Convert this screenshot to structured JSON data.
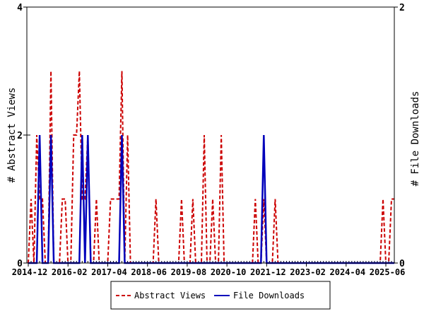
{
  "chart_data": {
    "type": "line",
    "title": "",
    "xlabel": "",
    "ylabel": "# Abstract Views",
    "y2label": "# File Downloads",
    "x_range": [
      "2014-12",
      "2025-09"
    ],
    "x_tick_labels": [
      "2014-12",
      "2016-02",
      "2017-04",
      "2018-06",
      "2019-08",
      "2020-10",
      "2021-12",
      "2023-02",
      "2024-04",
      "2025-06"
    ],
    "ylim": [
      0,
      4
    ],
    "y_ticks": [
      "0",
      "2",
      "4"
    ],
    "y2lim": [
      0,
      2
    ],
    "y2_ticks": [
      "0",
      "2"
    ],
    "grid": false,
    "legend_placement": "bottom",
    "note_on_points": "monthly series; months not listed are 0",
    "series": [
      {
        "name": "Abstract Views",
        "axis": "left",
        "color": "#cc0000",
        "style": "dashed",
        "points": [
          [
            "2015-01",
            1
          ],
          [
            "2015-03",
            2
          ],
          [
            "2015-04",
            1
          ],
          [
            "2015-05",
            1
          ],
          [
            "2015-08",
            3
          ],
          [
            "2015-12",
            1
          ],
          [
            "2016-01",
            1
          ],
          [
            "2016-04",
            2
          ],
          [
            "2016-05",
            2
          ],
          [
            "2016-06",
            3
          ],
          [
            "2016-07",
            1
          ],
          [
            "2016-08",
            1
          ],
          [
            "2016-09",
            2
          ],
          [
            "2016-12",
            1
          ],
          [
            "2017-05",
            1
          ],
          [
            "2017-06",
            1
          ],
          [
            "2017-07",
            1
          ],
          [
            "2017-08",
            1
          ],
          [
            "2017-09",
            3
          ],
          [
            "2017-11",
            2
          ],
          [
            "2018-09",
            1
          ],
          [
            "2019-06",
            1
          ],
          [
            "2019-10",
            1
          ],
          [
            "2020-02",
            2
          ],
          [
            "2020-05",
            1
          ],
          [
            "2020-08",
            2
          ],
          [
            "2021-08",
            1
          ],
          [
            "2021-11",
            1
          ],
          [
            "2022-03",
            1
          ],
          [
            "2025-05",
            1
          ],
          [
            "2025-08",
            1
          ],
          [
            "2025-09",
            1
          ]
        ]
      },
      {
        "name": "File Downloads",
        "axis": "right",
        "color": "#0000bb",
        "style": "solid",
        "points": [
          [
            "2015-04",
            1
          ],
          [
            "2015-08",
            1
          ],
          [
            "2016-07",
            1
          ],
          [
            "2016-09",
            1
          ],
          [
            "2017-09",
            1
          ],
          [
            "2021-11",
            1
          ]
        ]
      }
    ]
  }
}
